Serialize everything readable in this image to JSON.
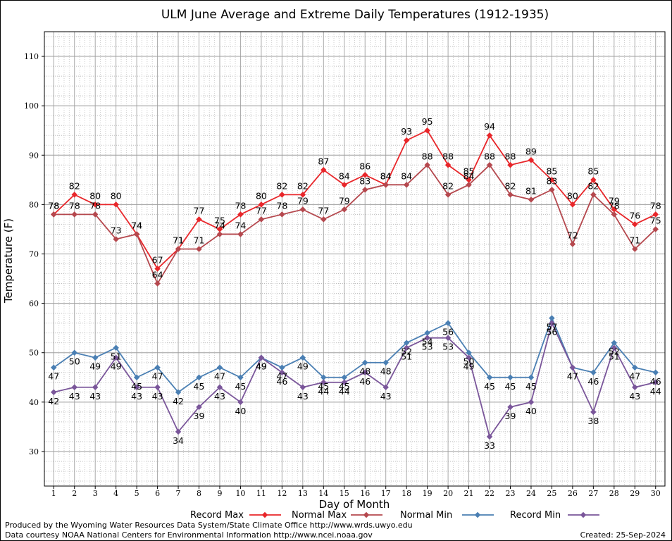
{
  "chart_data": {
    "type": "line",
    "title": "ULM June Average and Extreme Daily Temperatures (1912-1935)",
    "xlabel": "Day of Month",
    "ylabel": "Temperature (F)",
    "x": [
      1,
      2,
      3,
      4,
      5,
      6,
      7,
      8,
      9,
      10,
      11,
      12,
      13,
      14,
      15,
      16,
      17,
      18,
      19,
      20,
      21,
      22,
      23,
      24,
      25,
      26,
      27,
      28,
      29,
      30
    ],
    "xlim": [
      0.55,
      30.45
    ],
    "ylim": [
      23,
      115
    ],
    "yticks": [
      30,
      40,
      50,
      60,
      70,
      80,
      90,
      100,
      110
    ],
    "grid": true,
    "legend_position": "bottom",
    "series": [
      {
        "name": "Record Max",
        "color": "#e8262a",
        "label_pos": "above",
        "values": [
          78,
          82,
          80,
          80,
          74,
          67,
          71,
          77,
          75,
          78,
          80,
          82,
          82,
          87,
          84,
          86,
          84,
          93,
          95,
          88,
          85,
          94,
          88,
          89,
          85,
          80,
          85,
          79,
          76,
          78
        ]
      },
      {
        "name": "Normal Max",
        "color": "#b5484e",
        "label_pos": "above",
        "values": [
          78,
          78,
          78,
          73,
          74,
          64,
          71,
          71,
          74,
          74,
          77,
          78,
          79,
          77,
          79,
          83,
          84,
          84,
          88,
          82,
          84,
          88,
          82,
          81,
          83,
          72,
          82,
          78,
          71,
          75
        ]
      },
      {
        "name": "Normal Min",
        "color": "#4a7fb3",
        "label_pos": "below",
        "values": [
          47,
          50,
          49,
          51,
          45,
          47,
          42,
          45,
          47,
          45,
          49,
          47,
          49,
          45,
          45,
          48,
          48,
          52,
          54,
          56,
          50,
          45,
          45,
          45,
          57,
          47,
          46,
          52,
          47,
          46
        ]
      },
      {
        "name": "Record Min",
        "color": "#7a569a",
        "label_pos": "below",
        "values": [
          42,
          43,
          43,
          49,
          43,
          43,
          34,
          39,
          43,
          40,
          49,
          46,
          43,
          44,
          44,
          46,
          43,
          51,
          53,
          53,
          49,
          33,
          39,
          40,
          56,
          47,
          38,
          51,
          43,
          44
        ]
      }
    ]
  },
  "footer": {
    "produced_by": "Produced by the Wyoming Water Resources Data System/State Climate Office http://www.wrds.uwyo.edu",
    "courtesy": "Data courtesy NOAA National Centers for Environmental Information http://www.ncei.noaa.gov",
    "created": "Created:  25-Sep-2024"
  }
}
